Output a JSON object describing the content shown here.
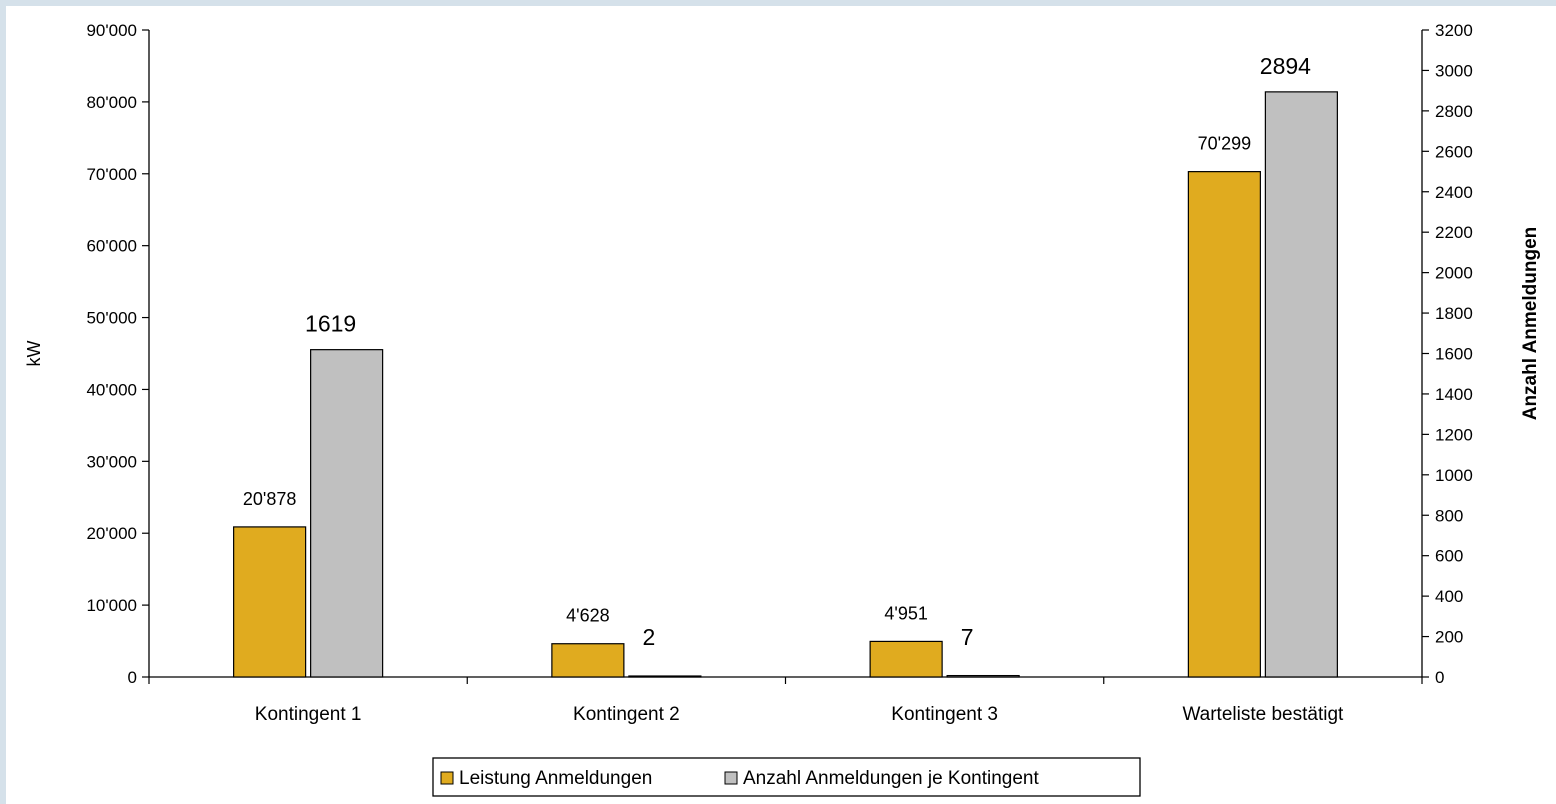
{
  "chart_data": {
    "type": "bar",
    "categories": [
      "Kontingent 1",
      "Kontingent 2",
      "Kontingent 3",
      "Warteliste bestätigt"
    ],
    "series": [
      {
        "name": "Leistung Anmeldungen",
        "axis": "left",
        "color": "#e0ab1f",
        "values": [
          20878,
          4628,
          4951,
          70299
        ],
        "labels": [
          "20'878",
          "4'628",
          "4'951",
          "70'299"
        ]
      },
      {
        "name": "Anzahl Anmeldungen je Kontingent",
        "axis": "right",
        "color": "#c0c0c0",
        "values": [
          1619,
          2,
          7,
          2894
        ],
        "labels": [
          "1619",
          "2",
          "7",
          "2894"
        ]
      }
    ],
    "y_left": {
      "label": "kW",
      "range": [
        0,
        90000
      ],
      "ticks": [
        0,
        10000,
        20000,
        30000,
        40000,
        50000,
        60000,
        70000,
        80000,
        90000
      ],
      "tick_labels": [
        "0",
        "10'000",
        "20'000",
        "30'000",
        "40'000",
        "50'000",
        "60'000",
        "70'000",
        "80'000",
        "90'000"
      ]
    },
    "y_right": {
      "label": "Anzahl Anmeldungen",
      "range": [
        0,
        3200
      ],
      "ticks": [
        0,
        200,
        400,
        600,
        800,
        1000,
        1200,
        1400,
        1600,
        1800,
        2000,
        2200,
        2400,
        2600,
        2800,
        3000,
        3200
      ],
      "tick_labels": [
        "0",
        "200",
        "400",
        "600",
        "800",
        "1000",
        "1200",
        "1400",
        "1600",
        "1800",
        "2000",
        "2200",
        "2400",
        "2600",
        "2800",
        "3000",
        "3200"
      ]
    },
    "grid": false,
    "legend": "bottom"
  }
}
